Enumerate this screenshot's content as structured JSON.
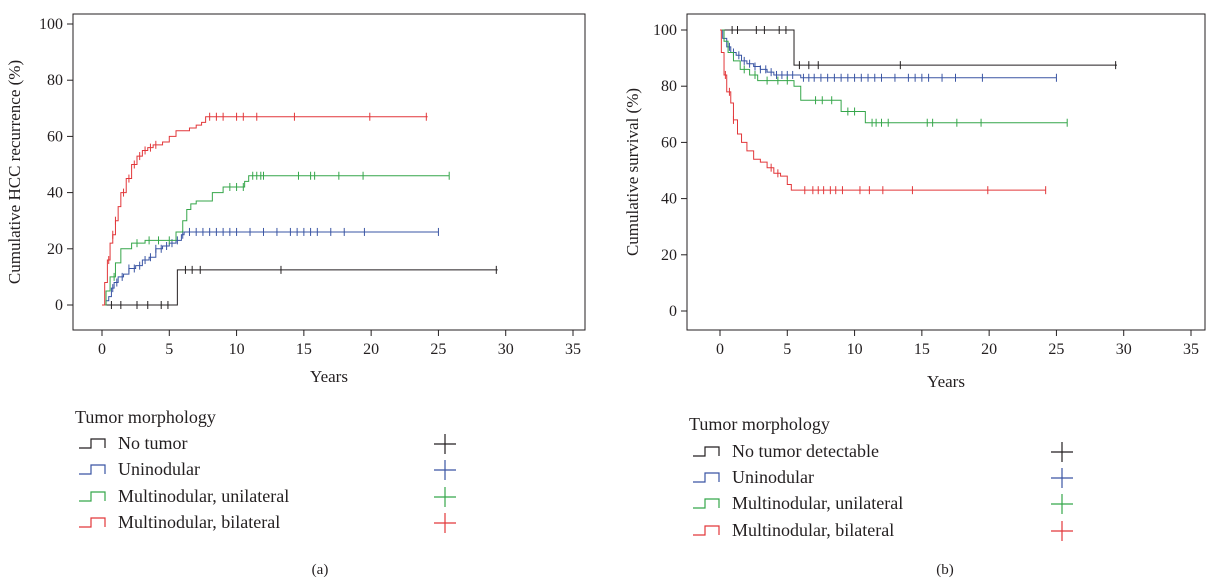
{
  "chart_data": [
    {
      "panel_label": "(a)",
      "type": "line",
      "subtype": "kaplan-meier-step",
      "xlabel": "Years",
      "ylabel": "Cumulative HCC recurrence (%)",
      "xlim": [
        -2,
        37
      ],
      "ylim": [
        -5,
        105
      ],
      "xticks": [
        "0",
        "5",
        "10",
        "15",
        "20",
        "25",
        "30",
        "35"
      ],
      "yticks": [
        "0",
        "20",
        "40",
        "60",
        "80",
        "100"
      ],
      "legend_title": "Tumor morphology",
      "legend_placement": "below",
      "series": [
        {
          "name": "No tumor",
          "color": "#231f20",
          "steps": [
            [
              0,
              0
            ],
            [
              5.6,
              0
            ],
            [
              5.6,
              12.5
            ],
            [
              29.4,
              12.5
            ]
          ],
          "censor": [
            0.7,
            1.4,
            2.6,
            3.4,
            4.4,
            4.9,
            6.2,
            6.7,
            7.3,
            13.3,
            29.3
          ]
        },
        {
          "name": "Uninodular",
          "color": "#3a55a4",
          "steps": [
            [
              0,
              0
            ],
            [
              0.3,
              1.5
            ],
            [
              0.5,
              3
            ],
            [
              0.7,
              6
            ],
            [
              0.9,
              8
            ],
            [
              1.2,
              10
            ],
            [
              1.6,
              11
            ],
            [
              2,
              13
            ],
            [
              2.5,
              14
            ],
            [
              3,
              16
            ],
            [
              3.5,
              17
            ],
            [
              4,
              20
            ],
            [
              4.5,
              21
            ],
            [
              5,
              22
            ],
            [
              5.5,
              23
            ],
            [
              5.9,
              25
            ],
            [
              6.1,
              26
            ],
            [
              25,
              26
            ]
          ],
          "censor": [
            0.8,
            1.1,
            1.5,
            2,
            2.4,
            2.8,
            3.2,
            3.6,
            4,
            4.4,
            4.8,
            5.2,
            5.6,
            6,
            6.5,
            7,
            7.5,
            8,
            8.5,
            9,
            9.5,
            10,
            11,
            12,
            13,
            14,
            14.5,
            15,
            15.5,
            16,
            17,
            18,
            19.5,
            25
          ]
        },
        {
          "name": "Multinodular, unilateral",
          "color": "#35a64a",
          "steps": [
            [
              0,
              0
            ],
            [
              0.3,
              5
            ],
            [
              0.6,
              10
            ],
            [
              1,
              15
            ],
            [
              1.4,
              20
            ],
            [
              2.2,
              22
            ],
            [
              3.2,
              23
            ],
            [
              5,
              23
            ],
            [
              5.5,
              26
            ],
            [
              6,
              30
            ],
            [
              6.3,
              34
            ],
            [
              6.6,
              36
            ],
            [
              7,
              37
            ],
            [
              8.2,
              40
            ],
            [
              9,
              42
            ],
            [
              10.6,
              44
            ],
            [
              10.9,
              46
            ],
            [
              25.8,
              46
            ]
          ],
          "censor": [
            0.9,
            2.6,
            3.5,
            4.2,
            5,
            9.5,
            10,
            10.5,
            11.2,
            11.5,
            11.8,
            12,
            14.6,
            15.5,
            15.8,
            17.6,
            19.4,
            25.8
          ]
        },
        {
          "name": "Multinodular, bilateral",
          "color": "#e2373a",
          "steps": [
            [
              0,
              0
            ],
            [
              0.2,
              8
            ],
            [
              0.4,
              16
            ],
            [
              0.6,
              22
            ],
            [
              0.8,
              25
            ],
            [
              1,
              30
            ],
            [
              1.2,
              35
            ],
            [
              1.4,
              40
            ],
            [
              1.8,
              45
            ],
            [
              2.2,
              50
            ],
            [
              2.6,
              53
            ],
            [
              3,
              55
            ],
            [
              3.4,
              56
            ],
            [
              3.8,
              57
            ],
            [
              4.5,
              58
            ],
            [
              5,
              60
            ],
            [
              5.5,
              62
            ],
            [
              6.5,
              63
            ],
            [
              7,
              64
            ],
            [
              7.4,
              65
            ],
            [
              7.7,
              67
            ],
            [
              24.2,
              67
            ]
          ],
          "censor": [
            0.5,
            0.8,
            1.0,
            1.6,
            2.0,
            2.4,
            2.8,
            3.2,
            3.6,
            4.0,
            8.0,
            8.5,
            9.0,
            10.0,
            10.5,
            11.5,
            14.3,
            19.9,
            24.1
          ]
        }
      ]
    },
    {
      "panel_label": "(b)",
      "type": "line",
      "subtype": "kaplan-meier-step",
      "xlabel": "Years",
      "ylabel": "Cumulative survival (%)",
      "xlim": [
        -2,
        37
      ],
      "ylim": [
        -5,
        105
      ],
      "xticks": [
        "0",
        "5",
        "10",
        "15",
        "20",
        "25",
        "30",
        "35"
      ],
      "yticks": [
        "0",
        "20",
        "40",
        "60",
        "80",
        "100"
      ],
      "legend_title": "Tumor morphology",
      "legend_placement": "below",
      "series": [
        {
          "name": "No tumor detectable",
          "color": "#231f20",
          "steps": [
            [
              0,
              100
            ],
            [
              5.5,
              100
            ],
            [
              5.5,
              87.5
            ],
            [
              29.5,
              87.5
            ]
          ],
          "censor": [
            0.9,
            1.3,
            2.7,
            3.3,
            4.4,
            4.9,
            5.9,
            6.6,
            7.3,
            13.4,
            29.4
          ]
        },
        {
          "name": "Uninodular",
          "color": "#3a55a4",
          "steps": [
            [
              0,
              100
            ],
            [
              0.2,
              97
            ],
            [
              0.5,
              94
            ],
            [
              0.8,
              92
            ],
            [
              1.2,
              91
            ],
            [
              1.6,
              89
            ],
            [
              2,
              88
            ],
            [
              2.5,
              87
            ],
            [
              3,
              86
            ],
            [
              3.5,
              85
            ],
            [
              4,
              84
            ],
            [
              5.8,
              84
            ],
            [
              6,
              83
            ],
            [
              25,
              83
            ]
          ],
          "censor": [
            0.7,
            1,
            1.4,
            1.8,
            2.2,
            2.6,
            3,
            3.4,
            3.8,
            4.2,
            4.6,
            5,
            5.4,
            6.2,
            6.6,
            7,
            7.5,
            8,
            8.5,
            9,
            9.5,
            10,
            10.5,
            11,
            11.5,
            12,
            13,
            14,
            14.5,
            15,
            15.5,
            16.5,
            17.5,
            19.5,
            25
          ]
        },
        {
          "name": "Multinodular, unilateral",
          "color": "#35a64a",
          "steps": [
            [
              0,
              100
            ],
            [
              0.3,
              96
            ],
            [
              0.6,
              92
            ],
            [
              1,
              89
            ],
            [
              1.5,
              86
            ],
            [
              2.2,
              84
            ],
            [
              2.8,
              82
            ],
            [
              5,
              82
            ],
            [
              5.5,
              80
            ],
            [
              6,
              75
            ],
            [
              8.5,
              75
            ],
            [
              9,
              71
            ],
            [
              10.5,
              71
            ],
            [
              10.8,
              67
            ],
            [
              25.8,
              67
            ]
          ],
          "censor": [
            1.8,
            2.6,
            3.5,
            4.3,
            5,
            7.1,
            7.6,
            8.3,
            9.5,
            10,
            11.3,
            11.6,
            12,
            12.5,
            15.4,
            15.8,
            17.6,
            19.4,
            25.8
          ]
        },
        {
          "name": "Multinodular, bilateral",
          "color": "#e2373a",
          "steps": [
            [
              0,
              100
            ],
            [
              0.1,
              92
            ],
            [
              0.3,
              84
            ],
            [
              0.5,
              78
            ],
            [
              0.8,
              74
            ],
            [
              1,
              68
            ],
            [
              1.3,
              63
            ],
            [
              1.6,
              60
            ],
            [
              2,
              57
            ],
            [
              2.5,
              54
            ],
            [
              3,
              53
            ],
            [
              3.5,
              51
            ],
            [
              4,
              49
            ],
            [
              4.5,
              48
            ],
            [
              5,
              45
            ],
            [
              5.3,
              43
            ],
            [
              24.2,
              43
            ]
          ],
          "censor": [
            0.4,
            0.7,
            1.0,
            3.8,
            4.3,
            6.3,
            6.9,
            7.3,
            7.7,
            8.2,
            8.6,
            9.1,
            10.4,
            11.1,
            12.1,
            14.3,
            19.9,
            24.2
          ]
        }
      ]
    }
  ]
}
